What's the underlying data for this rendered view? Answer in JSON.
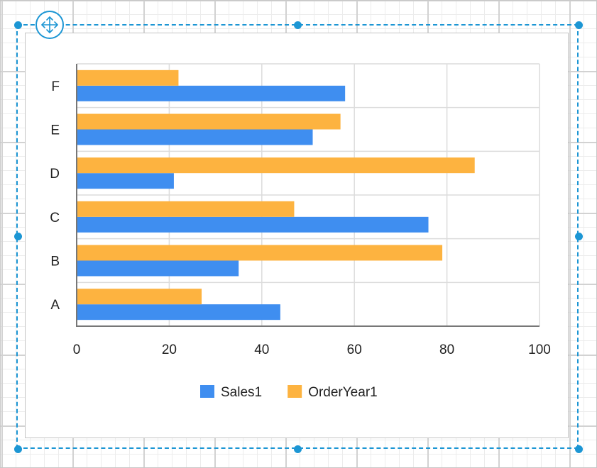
{
  "colors": {
    "selection": "#1c96d4",
    "sales1": "#3f8ef0",
    "orderyear1": "#fdb340",
    "gridline": "#dcdcdc",
    "axis": "#777777"
  },
  "icons": {
    "move": "move-arrows-icon"
  },
  "chart_data": {
    "type": "bar",
    "orientation": "horizontal",
    "categories": [
      "A",
      "B",
      "C",
      "D",
      "E",
      "F"
    ],
    "series": [
      {
        "name": "Sales1",
        "color": "#3f8ef0",
        "values": [
          44,
          35,
          76,
          21,
          51,
          58
        ]
      },
      {
        "name": "OrderYear1",
        "color": "#fdb340",
        "values": [
          27,
          79,
          47,
          86,
          57,
          22
        ]
      }
    ],
    "x_ticks": [
      "0",
      "20",
      "40",
      "60",
      "80",
      "100"
    ],
    "xlim": [
      0,
      100
    ],
    "grid": true,
    "legend_position": "bottom"
  }
}
